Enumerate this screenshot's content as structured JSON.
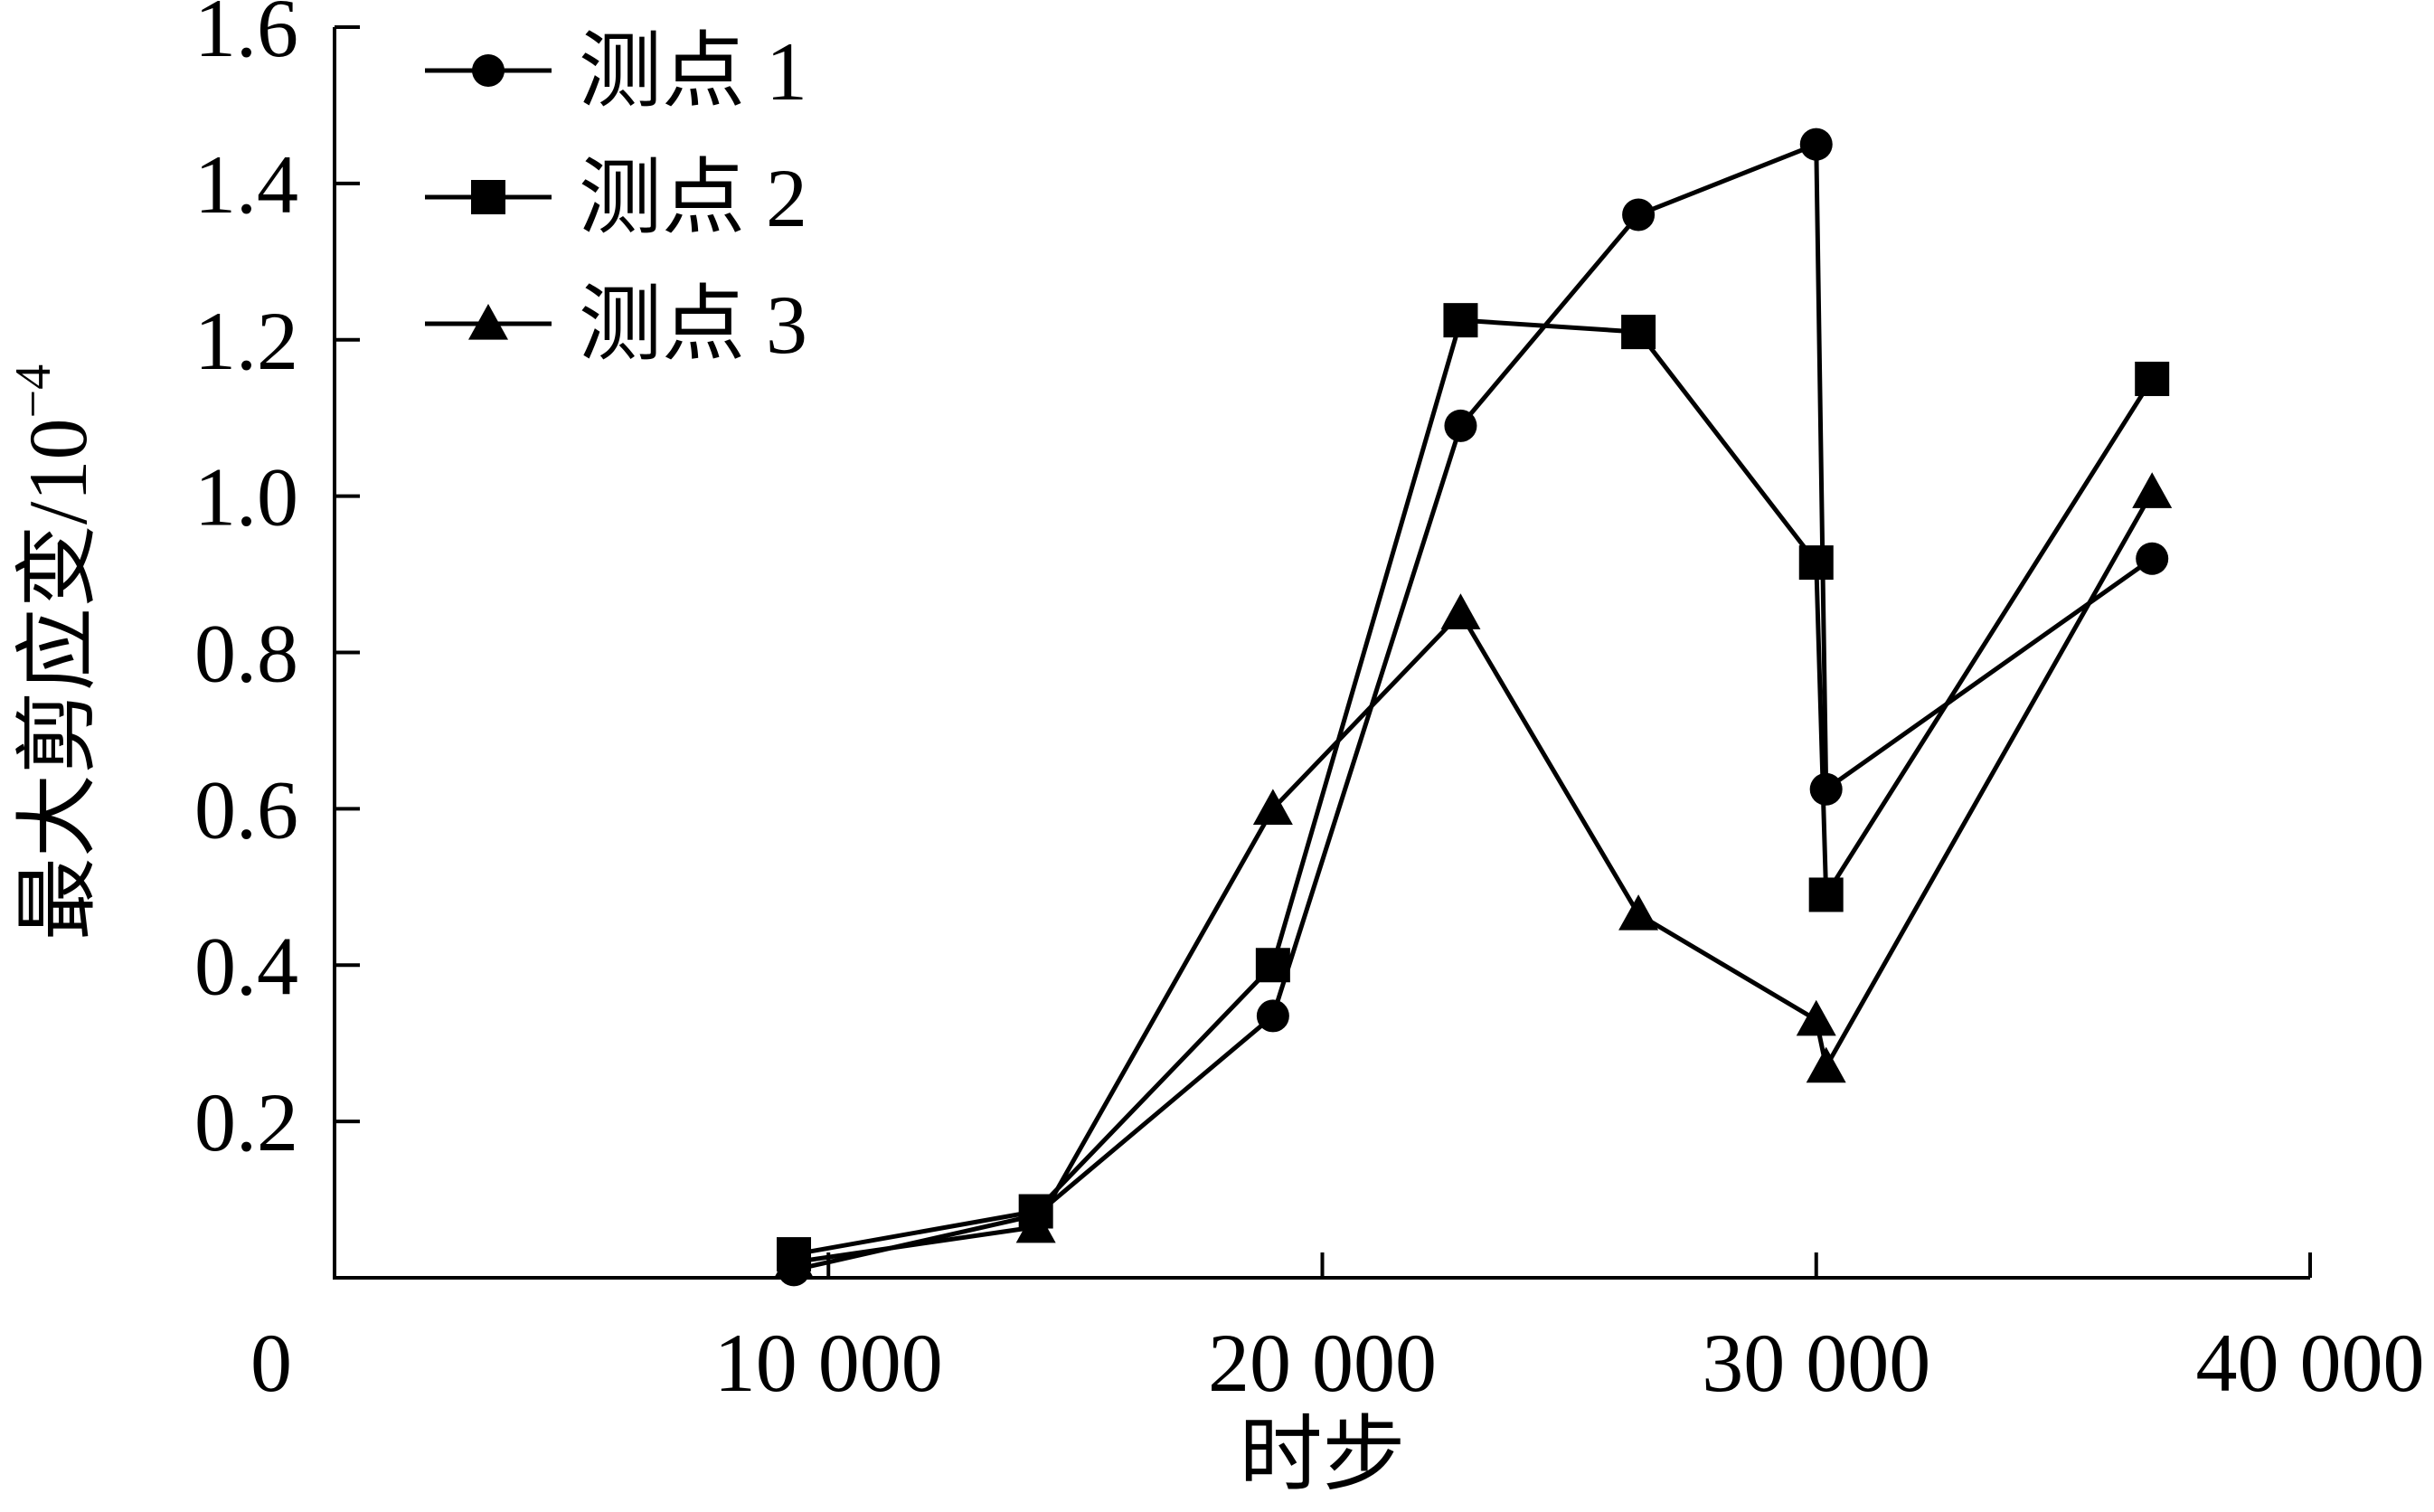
{
  "chart_data": {
    "type": "line",
    "title": "",
    "xlabel": "时步",
    "ylabel": "最大剪应变/10",
    "ylabel_exponent": "−4",
    "xlim": [
      0,
      40000
    ],
    "ylim": [
      0,
      1.6
    ],
    "x_ticks": [
      {
        "value": 0,
        "label": "0"
      },
      {
        "value": 10000,
        "label": "10 000"
      },
      {
        "value": 20000,
        "label": "20 000"
      },
      {
        "value": 30000,
        "label": "30 000"
      },
      {
        "value": 40000,
        "label": "40 000"
      }
    ],
    "y_ticks": [
      {
        "value": 0.2,
        "label": "0.2"
      },
      {
        "value": 0.4,
        "label": "0.4"
      },
      {
        "value": 0.6,
        "label": "0.6"
      },
      {
        "value": 0.8,
        "label": "0.8"
      },
      {
        "value": 1.0,
        "label": "1.0"
      },
      {
        "value": 1.2,
        "label": "1.2"
      },
      {
        "value": 1.4,
        "label": "1.4"
      },
      {
        "value": 1.6,
        "label": "1.6"
      }
    ],
    "grid": false,
    "legend_position": "top-left",
    "series": [
      {
        "name": "测点 1",
        "marker": "circle",
        "color": "#000000",
        "points": [
          [
            9300,
            0.01
          ],
          [
            14200,
            0.08
          ],
          [
            19000,
            0.335
          ],
          [
            22800,
            1.09
          ],
          [
            26400,
            1.36
          ],
          [
            30000,
            1.45
          ],
          [
            30200,
            0.625
          ],
          [
            36800,
            0.92
          ]
        ]
      },
      {
        "name": "测点 2",
        "marker": "square",
        "color": "#000000",
        "points": [
          [
            9300,
            0.03
          ],
          [
            14200,
            0.085
          ],
          [
            19000,
            0.4
          ],
          [
            22800,
            1.225
          ],
          [
            26400,
            1.21
          ],
          [
            30000,
            0.915
          ],
          [
            30200,
            0.49
          ],
          [
            36800,
            1.15
          ]
        ]
      },
      {
        "name": "测点 3",
        "marker": "triangle",
        "color": "#000000",
        "points": [
          [
            9300,
            0.02
          ],
          [
            14200,
            0.065
          ],
          [
            19000,
            0.6
          ],
          [
            22800,
            0.85
          ],
          [
            26400,
            0.465
          ],
          [
            30000,
            0.33
          ],
          [
            30200,
            0.27
          ],
          [
            36800,
            1.005
          ]
        ]
      }
    ]
  }
}
